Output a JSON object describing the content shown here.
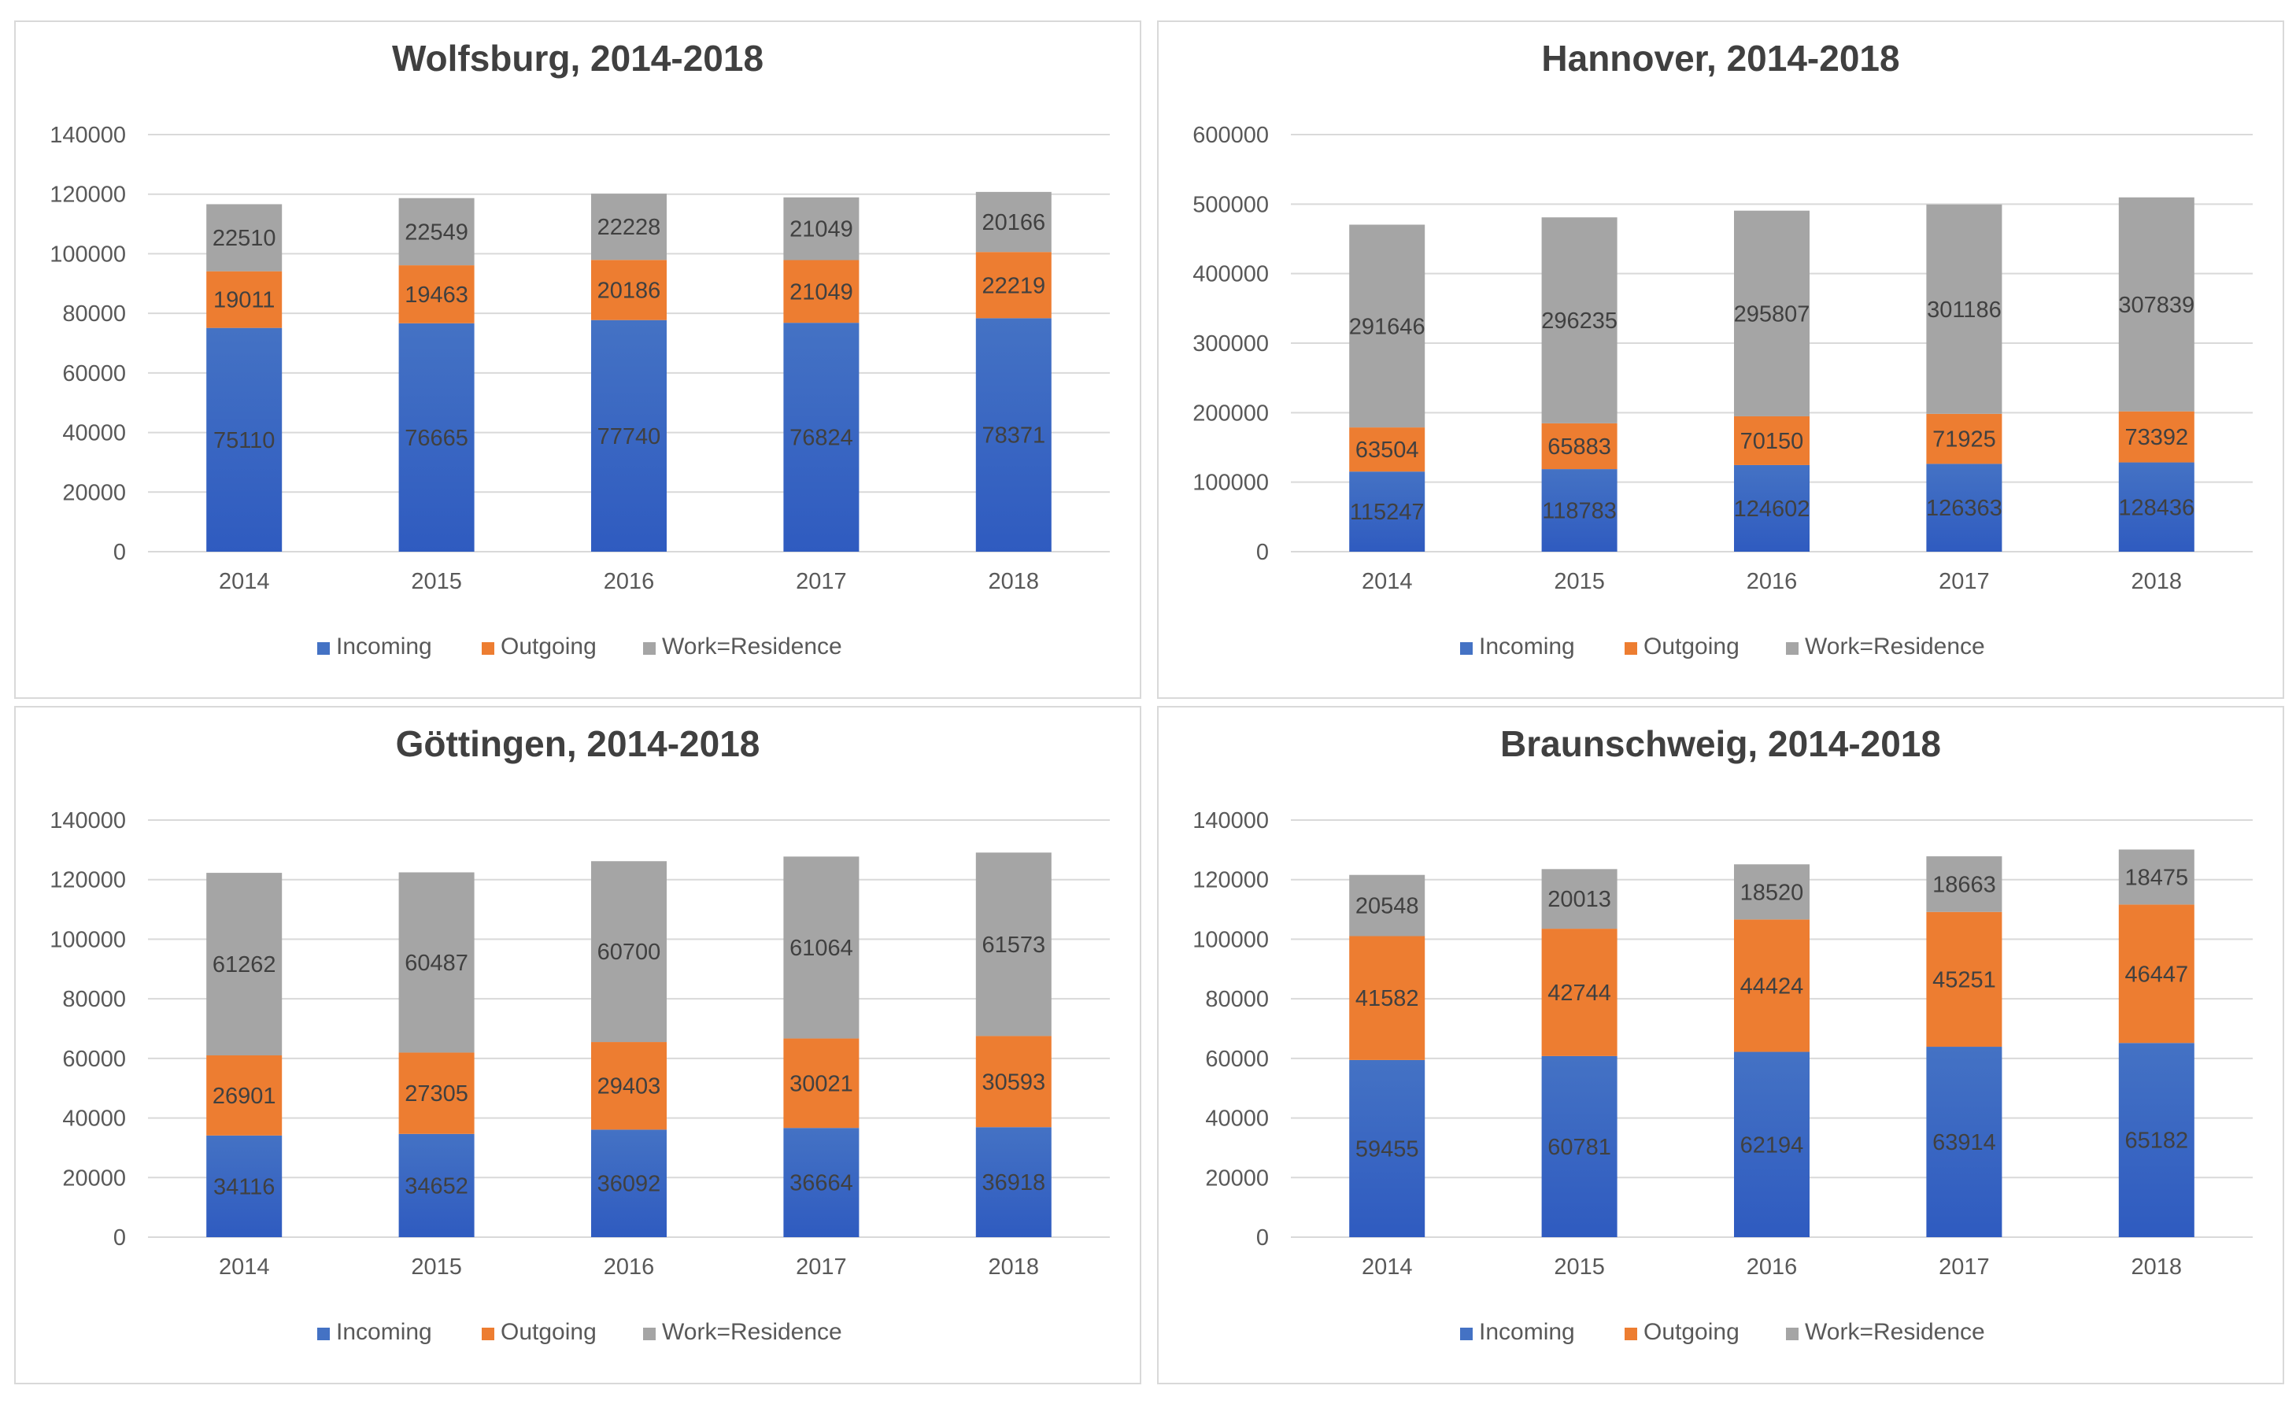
{
  "colors": {
    "incoming": "#4472c4",
    "incoming_dark": "#2f5bc0",
    "outgoing": "#ed7d31",
    "residence": "#a5a5a5",
    "grid": "#d9d9d9",
    "title": "#404040",
    "axis_text": "#595959",
    "data_label": "#404040"
  },
  "chart_data": [
    {
      "type": "bar",
      "stacked": true,
      "title": "Wolfsburg, 2014-2018",
      "categories": [
        "2014",
        "2015",
        "2016",
        "2017",
        "2018"
      ],
      "ylim": [
        0,
        140000
      ],
      "yticks": [
        0,
        20000,
        40000,
        60000,
        80000,
        100000,
        120000,
        140000
      ],
      "ytick_labels": [
        "0",
        "20000",
        "40000",
        "60000",
        "80000",
        "100000",
        "120000",
        "140000"
      ],
      "grid": true,
      "legend": "bottom",
      "series": [
        {
          "name": "Incoming",
          "values": [
            75110,
            76665,
            77740,
            76824,
            78371
          ],
          "labels": [
            "75110",
            "76665",
            "77740",
            "76824",
            "78371"
          ]
        },
        {
          "name": "Outgoing",
          "values": [
            19011,
            19463,
            20186,
            21049,
            22219
          ],
          "labels": [
            "19011",
            "19463",
            "20186",
            "21049",
            "22219"
          ]
        },
        {
          "name": "Work=Residence",
          "values": [
            22510,
            22549,
            22228,
            21049,
            20166
          ],
          "labels": [
            "22510",
            "22549",
            "22228",
            "21049",
            "20166"
          ]
        }
      ]
    },
    {
      "type": "bar",
      "stacked": true,
      "title": "Hannover, 2014-2018",
      "categories": [
        "2014",
        "2015",
        "2016",
        "2017",
        "2018"
      ],
      "ylim": [
        0,
        600000
      ],
      "yticks": [
        0,
        100000,
        200000,
        300000,
        400000,
        500000,
        600000
      ],
      "ytick_labels": [
        "0",
        "100000",
        "200000",
        "300000",
        "400000",
        "500000",
        "600000"
      ],
      "grid": true,
      "legend": "bottom",
      "series": [
        {
          "name": "Incoming",
          "values": [
            115247,
            118783,
            124602,
            126363,
            128436
          ],
          "labels": [
            "115247",
            "118783",
            "124602",
            "126363",
            "128436"
          ]
        },
        {
          "name": "Outgoing",
          "values": [
            63504,
            65883,
            70150,
            71925,
            73392
          ],
          "labels": [
            "63504",
            "65883",
            "70150",
            "71925",
            "73392"
          ]
        },
        {
          "name": "Work=Residence",
          "values": [
            291646,
            296235,
            295807,
            301186,
            307839
          ],
          "labels": [
            "291646",
            "296235",
            "295807",
            "301186",
            "307839"
          ]
        }
      ]
    },
    {
      "type": "bar",
      "stacked": true,
      "title": "Göttingen, 2014-2018",
      "categories": [
        "2014",
        "2015",
        "2016",
        "2017",
        "2018"
      ],
      "ylim": [
        0,
        140000
      ],
      "yticks": [
        0,
        20000,
        40000,
        60000,
        80000,
        100000,
        120000,
        140000
      ],
      "ytick_labels": [
        "0",
        "20000",
        "40000",
        "60000",
        "80000",
        "100000",
        "120000",
        "140000"
      ],
      "grid": true,
      "legend": "bottom",
      "series": [
        {
          "name": "Incoming",
          "values": [
            34116,
            34652,
            36092,
            36664,
            36918
          ],
          "labels": [
            "34116",
            "34652",
            "36092",
            "36664",
            "36918"
          ]
        },
        {
          "name": "Outgoing",
          "values": [
            26901,
            27305,
            29403,
            30021,
            30593
          ],
          "labels": [
            "26901",
            "27305",
            "29403",
            "30021",
            "30593"
          ]
        },
        {
          "name": "Work=Residence",
          "values": [
            61262,
            60487,
            60700,
            61064,
            61573
          ],
          "labels": [
            "61262",
            "60487",
            "60700",
            "61064",
            "61573"
          ]
        }
      ]
    },
    {
      "type": "bar",
      "stacked": true,
      "title": "Braunschweig, 2014-2018",
      "categories": [
        "2014",
        "2015",
        "2016",
        "2017",
        "2018"
      ],
      "ylim": [
        0,
        140000
      ],
      "yticks": [
        0,
        20000,
        40000,
        60000,
        80000,
        100000,
        120000,
        140000
      ],
      "ytick_labels": [
        "0",
        "20000",
        "40000",
        "60000",
        "80000",
        "100000",
        "120000",
        "140000"
      ],
      "grid": true,
      "legend": "bottom",
      "series": [
        {
          "name": "Incoming",
          "values": [
            59455,
            60781,
            62194,
            63914,
            65182
          ],
          "labels": [
            "59455",
            "60781",
            "62194",
            "63914",
            "65182"
          ]
        },
        {
          "name": "Outgoing",
          "values": [
            41582,
            42744,
            44424,
            45251,
            46447
          ],
          "labels": [
            "41582",
            "42744",
            "44424",
            "45251",
            "46447"
          ]
        },
        {
          "name": "Work=Residence",
          "values": [
            20548,
            20013,
            18520,
            18663,
            18475
          ],
          "labels": [
            "20548",
            "20013",
            "18520",
            "18663",
            "18475"
          ]
        }
      ]
    }
  ]
}
